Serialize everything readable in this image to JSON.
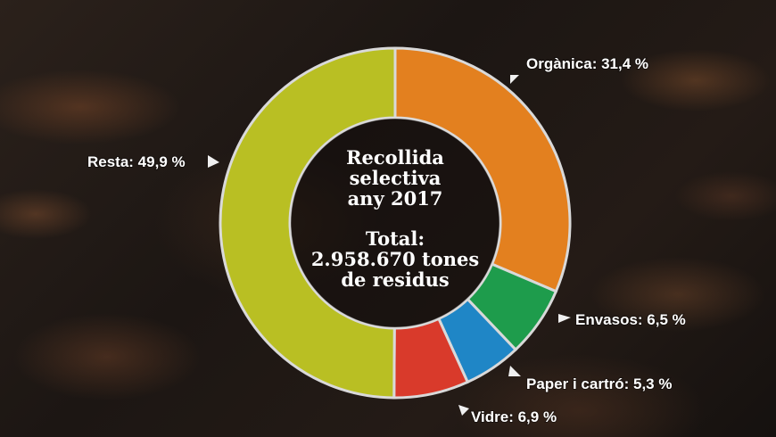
{
  "chart_data": {
    "type": "pie",
    "title": [
      "Recollida",
      "selectiva",
      "any 2017"
    ],
    "total": [
      "Total:",
      "2.958.670 tones",
      "de residus"
    ],
    "categories": [
      "Orgànica",
      "Envasos",
      "Paper i cartró",
      "Vidre",
      "Resta"
    ],
    "values": [
      31.4,
      6.5,
      5.3,
      6.9,
      49.9
    ],
    "labels": [
      "Orgànica: 31,4 %",
      "Envasos: 6,5 %",
      "Paper i cartró: 5,3 %",
      "Vidre: 6,9 %",
      "Resta: 49,9 %"
    ],
    "colors": [
      "#e3801f",
      "#1e9c4c",
      "#1f86c6",
      "#d93a2b",
      "#b9bf23"
    ],
    "chart_form": "donut"
  }
}
